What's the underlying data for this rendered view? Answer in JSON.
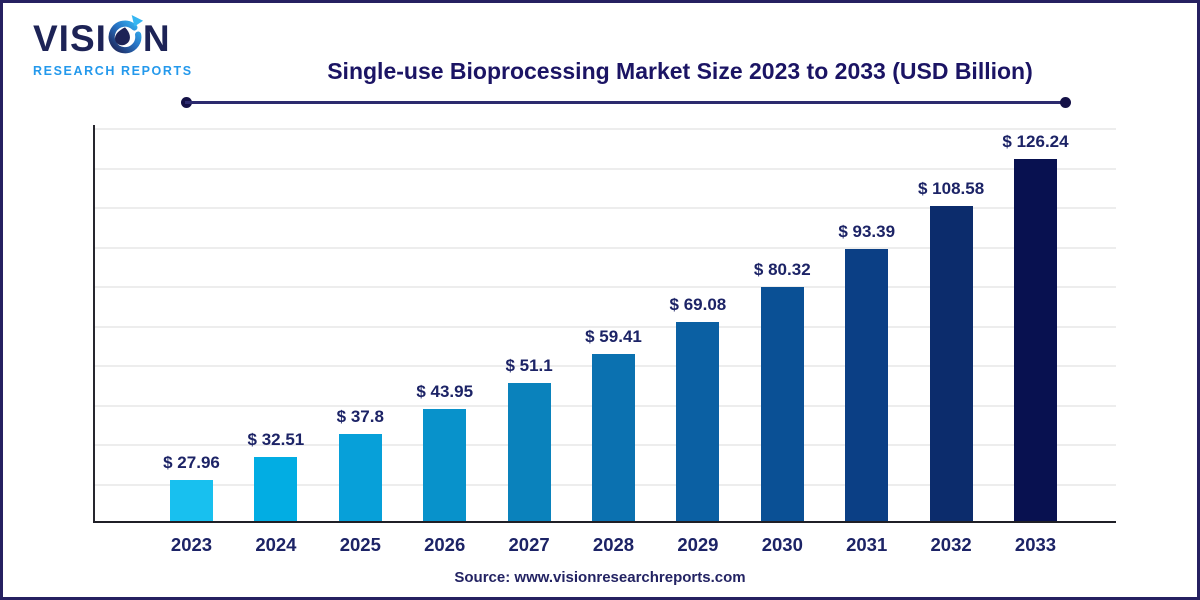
{
  "logo": {
    "word_start": "VISI",
    "word_end": "N",
    "subtitle": "RESEARCH REPORTS"
  },
  "title": "Single-use Bioprocessing Market Size 2023 to 2033 (USD Billion)",
  "source_text": "Source: www.visionresearchreports.com",
  "colors": {
    "title_navy": "#1b1464",
    "brand_blue": "#2499ec",
    "label_navy": "#1c2366"
  },
  "chart_data": {
    "type": "bar",
    "title": "Single-use Bioprocessing Market Size 2023 to 2033 (USD Billion)",
    "unit": "USD Billion",
    "categories": [
      "2023",
      "2024",
      "2025",
      "2026",
      "2027",
      "2028",
      "2029",
      "2030",
      "2031",
      "2032",
      "2033"
    ],
    "values": [
      27.96,
      32.51,
      37.8,
      43.95,
      51.1,
      59.41,
      69.08,
      80.32,
      93.39,
      108.58,
      126.24
    ],
    "labels": [
      "$ 27.96",
      "$ 32.51",
      "$ 37.8",
      "$ 43.95",
      "$ 51.1",
      "$ 59.41",
      "$ 69.08",
      "$ 80.32",
      "$ 93.39",
      "$ 108.58",
      "$ 126.24"
    ],
    "bar_colors": [
      "#18c0ef",
      "#02ade3",
      "#07a0d9",
      "#0892cb",
      "#0a82bc",
      "#0b71b0",
      "#0b60a3",
      "#0a5095",
      "#0b3f85",
      "#0c2c6c",
      "#081150"
    ],
    "xlabel": "",
    "ylabel": "",
    "ylim": [
      15,
      135
    ],
    "grid": "horizontal",
    "legend": "none"
  }
}
